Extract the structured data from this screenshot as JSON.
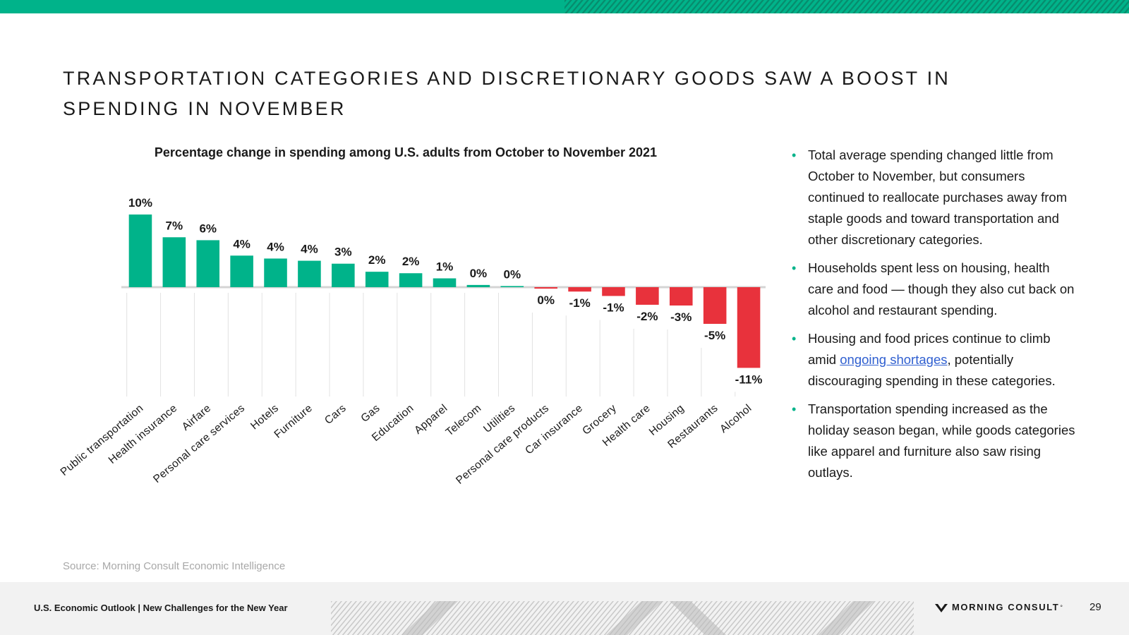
{
  "header": {
    "title": "TRANSPORTATION CATEGORIES AND DISCRETIONARY GOODS SAW A BOOST IN SPENDING IN NOVEMBER"
  },
  "colors": {
    "accent": "#00b38a",
    "negative": "#e8323c",
    "text": "#1a1a1a",
    "source": "#a8a8a8",
    "link": "#2f5fd0"
  },
  "chart_data": {
    "type": "bar",
    "title": "Percentage change in spending among U.S. adults from October to November 2021",
    "xlabel": "",
    "ylabel": "",
    "ylim": [
      -11,
      10
    ],
    "grid": false,
    "categories": [
      "Public transportation",
      "Health insurance",
      "Airfare",
      "Personal care services",
      "Hotels",
      "Furniture",
      "Cars",
      "Gas",
      "Education",
      "Apparel",
      "Telecom",
      "Utilities",
      "Personal care products",
      "Car insurance",
      "Grocery",
      "Health care",
      "Housing",
      "Restaurants",
      "Alcohol"
    ],
    "values": [
      9.9,
      6.8,
      6.4,
      4.3,
      3.9,
      3.6,
      3.2,
      2.1,
      1.9,
      1.2,
      0.3,
      0.05,
      -0.2,
      -0.6,
      -1.2,
      -2.4,
      -2.5,
      -5.0,
      -11.0
    ],
    "labels": [
      "10%",
      "7%",
      "6%",
      "4%",
      "4%",
      "4%",
      "3%",
      "2%",
      "2%",
      "1%",
      "0%",
      "0%",
      "0%",
      "-1%",
      "-1%",
      "-2%",
      "-3%",
      "-5%",
      "-11%"
    ]
  },
  "sidebar": {
    "bullet_1": "Total average spending changed little from October to November, but consumers continued to reallocate purchases away from staple goods and toward transportation and other discretionary categories.",
    "bullet_2": "Households spent less on housing, health care and food — though they also cut back on alcohol and restaurant spending.",
    "bullet_3_pre": "Housing and food prices continue to climb amid ",
    "bullet_3_link": "ongoing shortages",
    "bullet_3_post": ", potentially discouraging spending in these categories.",
    "bullet_4": "Transportation spending increased as the holiday season began, while goods categories like apparel and furniture also saw rising outlays."
  },
  "source": "Source: Morning Consult Economic Intelligence",
  "footer": {
    "text": "U.S. Economic Outlook | New Challenges for the New Year",
    "brand": "MORNING CONSULT",
    "brand_mark": "°",
    "page_number": "29"
  }
}
